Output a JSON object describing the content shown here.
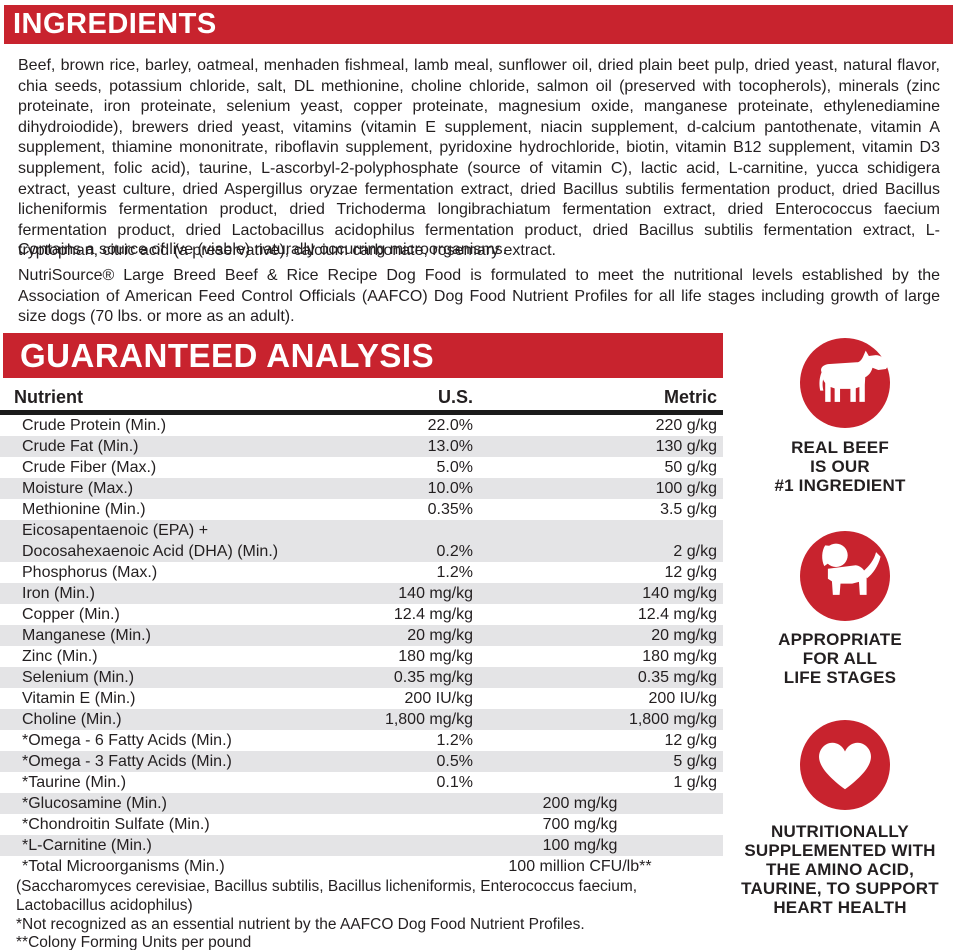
{
  "colors": {
    "red": "#c8232e",
    "stripe": "#e4e4e6",
    "ink": "#231f20"
  },
  "ingredients": {
    "title": "INGREDIENTS",
    "body": "Beef, brown rice, barley, oatmeal, menhaden fishmeal, lamb meal, sunflower oil, dried plain beet pulp, dried yeast, natural flavor, chia seeds, potassium chloride, salt, DL methionine, choline chloride, salmon oil (preserved with tocopherols), minerals (zinc proteinate, iron proteinate, selenium yeast, copper proteinate, magnesium oxide, manganese proteinate, ethylenediamine dihydroiodide), brewers dried yeast, vitamins (vitamin E supplement, niacin supplement, d-calcium pantothenate, vitamin A supplement, thiamine mononitrate, riboflavin supplement, pyridoxine hydrochloride, biotin, vitamin B12 supplement, vitamin D3 supplement, folic acid), taurine, L-ascorbyl-2-polyphosphate (source of vitamin C), lactic acid, L-carnitine, yucca schidigera extract, yeast culture, dried Aspergillus oryzae fermentation extract, dried Bacillus subtilis fermentation product, dried Bacillus licheniformis fermentation product, dried Trichoderma longibrachiatum fermentation extract, dried Enterococcus faecium fermentation product, dried Lactobacillus acidophilus fermentation product, dried Bacillus subtilis fermentation extract, L-tryptophan, citric acid (a preservative), calcium carbonate, rosemary extract.",
    "contains": "Contains a source of live (viable) naturally occurring microorganisms.",
    "aafco": "NutriSource® Large Breed Beef & Rice Recipe Dog Food is formulated to meet the nutritional levels established by the Association of American Feed Control Officials (AAFCO) Dog Food Nutrient Profiles for all life stages including growth of large size dogs (70 lbs. or more as an adult)."
  },
  "analysis": {
    "title": "GUARANTEED ANALYSIS",
    "columns": [
      "Nutrient",
      "U.S.",
      "Metric"
    ],
    "rows": [
      {
        "nutrient": "Crude Protein (Min.)",
        "us": "22.0%",
        "metric": "220 g/kg"
      },
      {
        "nutrient": "Crude Fat (Min.)",
        "us": "13.0%",
        "metric": "130 g/kg"
      },
      {
        "nutrient": "Crude Fiber (Max.)",
        "us": "5.0%",
        "metric": "50 g/kg"
      },
      {
        "nutrient": "Moisture (Max.)",
        "us": "10.0%",
        "metric": "100 g/kg"
      },
      {
        "nutrient": "Methionine (Min.)",
        "us": "0.35%",
        "metric": "3.5 g/kg"
      },
      {
        "nutrient": "Eicosapentaenoic (EPA) +\nDocosahexaenoic Acid (DHA) (Min.)",
        "us": "0.2%",
        "metric": "2 g/kg"
      },
      {
        "nutrient": "Phosphorus (Max.)",
        "us": "1.2%",
        "metric": "12 g/kg"
      },
      {
        "nutrient": "Iron (Min.)",
        "us": "140 mg/kg",
        "metric": "140 mg/kg"
      },
      {
        "nutrient": "Copper (Min.)",
        "us": "12.4 mg/kg",
        "metric": "12.4 mg/kg"
      },
      {
        "nutrient": "Manganese (Min.)",
        "us": "20 mg/kg",
        "metric": "20 mg/kg"
      },
      {
        "nutrient": "Zinc (Min.)",
        "us": "180 mg/kg",
        "metric": "180 mg/kg"
      },
      {
        "nutrient": "Selenium (Min.)",
        "us": "0.35 mg/kg",
        "metric": "0.35 mg/kg"
      },
      {
        "nutrient": "Vitamin E (Min.)",
        "us": "200 IU/kg",
        "metric": "200 IU/kg"
      },
      {
        "nutrient": "Choline (Min.)",
        "us": "1,800 mg/kg",
        "metric": "1,800 mg/kg"
      },
      {
        "nutrient": "*Omega - 6 Fatty Acids (Min.)",
        "us": "1.2%",
        "metric": "12 g/kg"
      },
      {
        "nutrient": "*Omega - 3 Fatty Acids (Min.)",
        "us": "0.5%",
        "metric": "5 g/kg"
      },
      {
        "nutrient": "*Taurine (Min.)",
        "us": "0.1%",
        "metric": "1 g/kg"
      },
      {
        "nutrient": "*Glucosamine (Min.)",
        "span": "200 mg/kg"
      },
      {
        "nutrient": "*Chondroitin Sulfate (Min.)",
        "span": "700 mg/kg"
      },
      {
        "nutrient": "*L-Carnitine (Min.)",
        "span": "100 mg/kg"
      },
      {
        "nutrient": "*Total Microorganisms (Min.)",
        "span": "100 million CFU/lb**"
      }
    ],
    "footnotes": [
      "(Saccharomyces cerevisiae, Bacillus subtilis, Bacillus licheniformis, Enterococcus faecium,\nLactobacillus acidophilus)",
      "*Not recognized as an essential nutrient by the AAFCO Dog Food Nutrient Profiles.",
      "**Colony Forming Units per pound"
    ]
  },
  "badges": [
    {
      "icon": "cow-icon",
      "label": "REAL BEEF\nIS OUR\n#1 INGREDIENT"
    },
    {
      "icon": "dog-icon",
      "label": "APPROPRIATE\nFOR ALL\nLIFE STAGES"
    },
    {
      "icon": "heart-icon",
      "label": "NUTRITIONALLY\nSUPPLEMENTED WITH\nTHE AMINO ACID,\nTAURINE, TO SUPPORT\nHEART HEALTH"
    }
  ]
}
